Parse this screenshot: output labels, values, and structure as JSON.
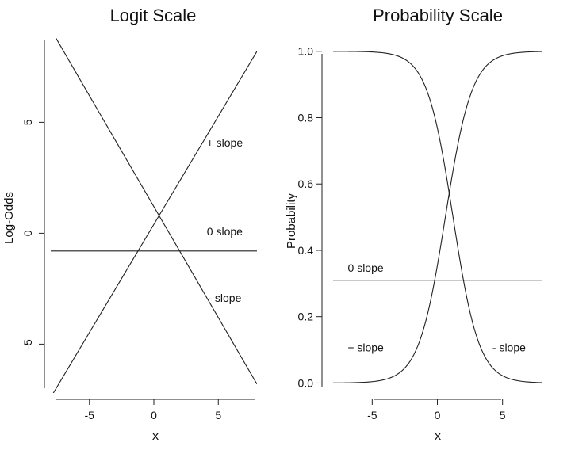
{
  "chart_data": [
    {
      "type": "line",
      "title": "Logit Scale",
      "xlabel": "X",
      "ylabel": "Log-Odds",
      "xlim": [
        -8,
        8
      ],
      "ylim": [
        -7.2,
        8.8
      ],
      "x_ticks": [
        -5,
        0,
        5
      ],
      "y_ticks": [
        -5,
        0,
        5
      ],
      "grid": false,
      "series": [
        {
          "name": "+ slope",
          "x": [
            -8,
            8
          ],
          "y": [
            -7.4,
            8.2
          ]
        },
        {
          "name": "0 slope",
          "x": [
            -8,
            8
          ],
          "y": [
            -0.8,
            -0.8
          ]
        },
        {
          "name": "- slope",
          "x": [
            -8,
            8
          ],
          "y": [
            9.2,
            -6.8
          ]
        }
      ],
      "annotations": [
        {
          "text": "+ slope",
          "x": 5.5,
          "y": 3.9
        },
        {
          "text": "0 slope",
          "x": 5.5,
          "y": -0.1
        },
        {
          "text": "- slope",
          "x": 5.5,
          "y": -3.1
        }
      ]
    },
    {
      "type": "line",
      "title": "Probability Scale",
      "xlabel": "X",
      "ylabel": "Probability",
      "xlim": [
        -8,
        8
      ],
      "ylim": [
        -0.03,
        1.04
      ],
      "x_ticks": [
        -5,
        0,
        5
      ],
      "y_ticks": [
        0.0,
        0.2,
        0.4,
        0.6,
        0.8,
        1.0
      ],
      "y_tick_labels": [
        "0.0",
        "0.2",
        "0.4",
        "0.6",
        "0.8",
        "1.0"
      ],
      "grid": false,
      "series": [
        {
          "name": "+ slope",
          "function": "logistic",
          "intercept": -0.6,
          "slope": 0.98
        },
        {
          "name": "0 slope",
          "x": [
            -8,
            8
          ],
          "y": [
            0.31,
            0.31
          ]
        },
        {
          "name": "- slope",
          "function": "logistic",
          "intercept": 1.2,
          "slope": -1.0
        }
      ],
      "annotations": [
        {
          "text": "0 slope",
          "x": -5.5,
          "y": 0.335
        },
        {
          "text": "+ slope",
          "x": -5.5,
          "y": 0.095
        },
        {
          "text": "- slope",
          "x": 5.5,
          "y": 0.095
        }
      ]
    }
  ]
}
